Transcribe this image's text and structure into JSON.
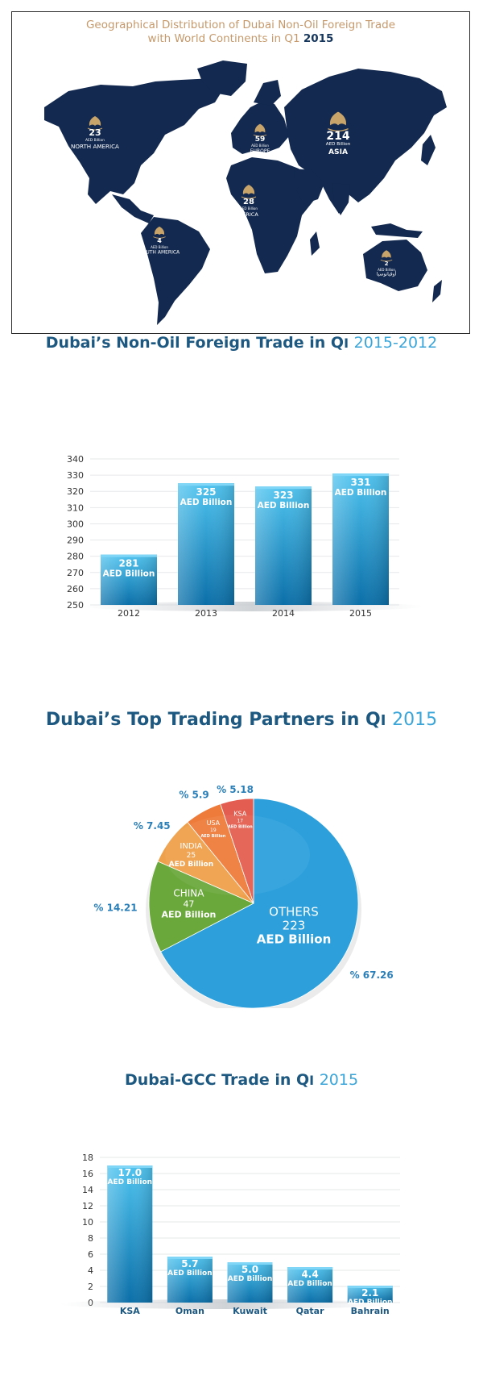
{
  "map": {
    "title_line1": "Geographical Distribution of Dubai Non-Oil Foreign Trade",
    "title_line2": "with World Continents in Q1",
    "title_year": "2015",
    "colors": {
      "land": "#13294f",
      "emblem": "#c9a46a"
    },
    "regions": [
      {
        "key": "north-america",
        "value": "23",
        "unit": "AED Billion",
        "name": "NORTH AMERICA"
      },
      {
        "key": "europe",
        "value": "59",
        "unit": "AED Billion",
        "name": "EUROPE"
      },
      {
        "key": "asia",
        "value": "214",
        "unit": "AED Billion",
        "name": "ASIA"
      },
      {
        "key": "africa",
        "value": "28",
        "unit": "AED Billion",
        "name": "AFRICA"
      },
      {
        "key": "south-america",
        "value": "4",
        "unit": "AED Billion",
        "name": "SOUTH AMERICA"
      },
      {
        "key": "oceania",
        "value": "2",
        "unit": "AED Billion",
        "name": "أوقيانوسيا"
      }
    ]
  },
  "section2": {
    "title": "Dubai’s Non-Oil Foreign Trade in Q",
    "title_q": "I",
    "title_years": "2015-2012"
  },
  "section3": {
    "title": "Dubai’s Top Trading Partners in Q",
    "title_q": "I",
    "title_year": "2015"
  },
  "section4": {
    "title": "Dubai-GCC Trade in Q",
    "title_q": "I",
    "title_year": "2015"
  },
  "chart_data": [
    {
      "type": "bar",
      "categories": [
        "2012",
        "2013",
        "2014",
        "2015"
      ],
      "values": [
        281,
        325,
        323,
        331
      ],
      "value_labels": [
        "281",
        "325",
        "323",
        "331"
      ],
      "unit_label": "AED Billion",
      "ylim": [
        250,
        340
      ],
      "yticks": [
        250,
        260,
        270,
        280,
        290,
        300,
        310,
        320,
        330,
        340
      ],
      "grid": true,
      "colors": {
        "bar_top": "#4ec3ef",
        "bar_bottom": "#0b6fa8",
        "bar_cap": "#7fd6f7"
      }
    },
    {
      "type": "pie",
      "slices": [
        {
          "name": "OTHERS",
          "value": 223,
          "unit": "AED Billion",
          "percent_label": "% 67.26",
          "color": "#2da0dc"
        },
        {
          "name": "CHINA",
          "value": 47,
          "unit": "AED Billion",
          "percent_label": "% 14.21",
          "color": "#6ba83c"
        },
        {
          "name": "INDIA",
          "value": 25,
          "unit": "AED Billion",
          "percent_label": "% 7.45",
          "color": "#eea04a"
        },
        {
          "name": "USA",
          "value": 19,
          "unit": "AED Billion",
          "percent_label": "% 5.9",
          "color": "#ee7b3a"
        },
        {
          "name": "KSA",
          "value": 17,
          "unit": "AED Billion",
          "percent_label": "% 5.18",
          "color": "#e35e50"
        }
      ],
      "percent_color": "#2b7fb8"
    },
    {
      "type": "bar",
      "categories": [
        "KSA",
        "Oman",
        "Kuwait",
        "Qatar",
        "Bahrain"
      ],
      "values": [
        17.0,
        5.7,
        5.0,
        4.4,
        2.1
      ],
      "value_labels": [
        "17.0",
        "5.7",
        "5.0",
        "4.4",
        "2.1"
      ],
      "unit_label": "AED Billion",
      "ylim": [
        0,
        18
      ],
      "yticks": [
        0,
        2,
        4,
        6,
        8,
        10,
        12,
        14,
        16,
        18
      ],
      "grid": true,
      "colors": {
        "bar_top": "#4ec3ef",
        "bar_bottom": "#0b6fa8",
        "bar_cap": "#7fd6f7"
      }
    }
  ]
}
